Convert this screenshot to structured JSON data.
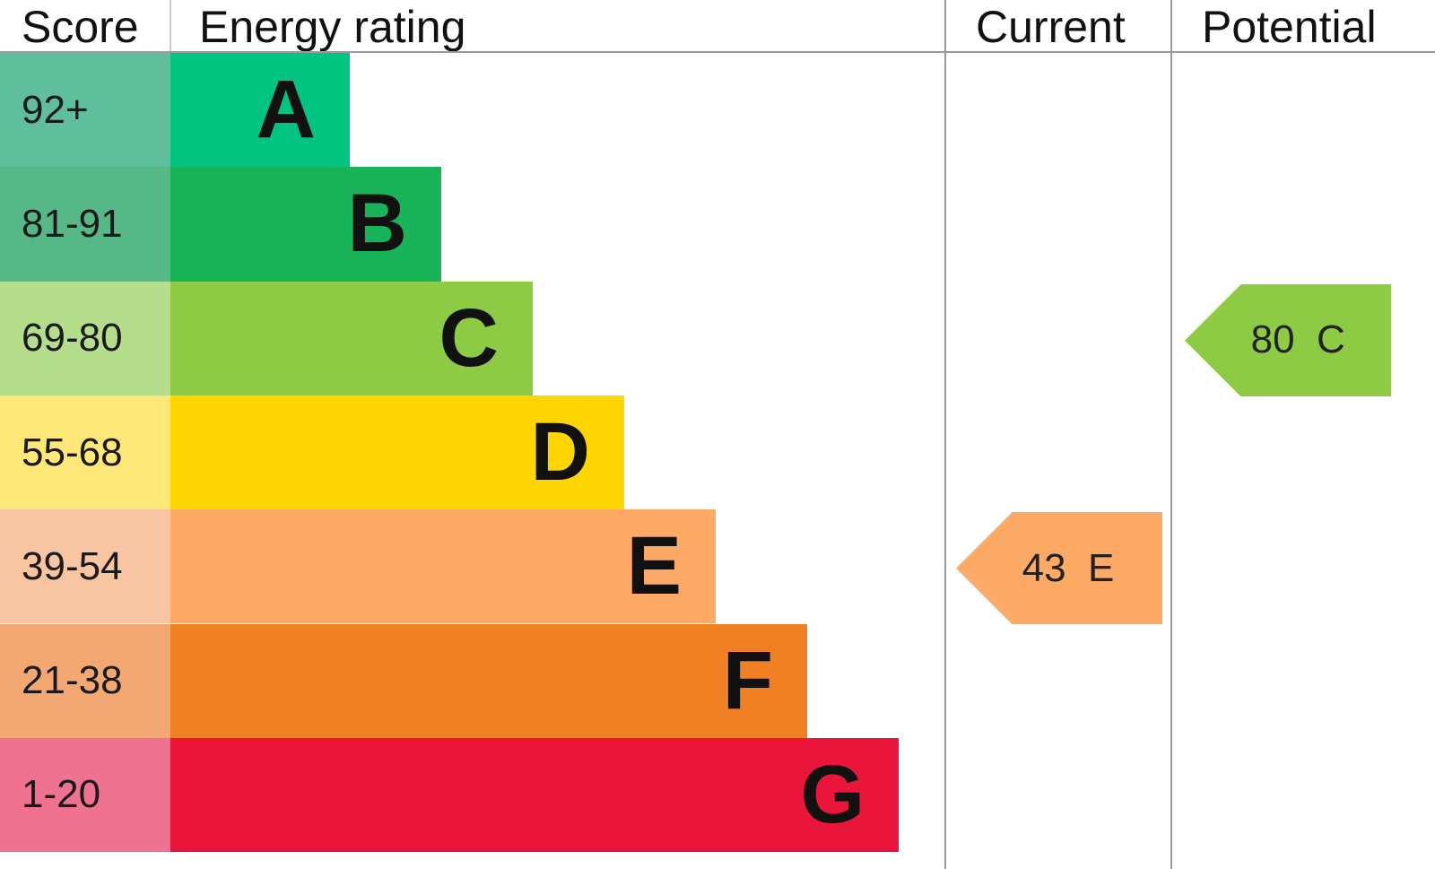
{
  "chart_data": {
    "type": "bar",
    "headers": {
      "score": "Score",
      "rating": "Energy rating",
      "current": "Current",
      "potential": "Potential"
    },
    "bands": [
      {
        "letter": "A",
        "range": "92+",
        "color": "#00c47f",
        "score_color": "#5fbf9c"
      },
      {
        "letter": "B",
        "range": "81-91",
        "color": "#19b35a",
        "score_color": "#56b886"
      },
      {
        "letter": "C",
        "range": "69-80",
        "color": "#8dcb45",
        "score_color": "#b4de8c"
      },
      {
        "letter": "D",
        "range": "55-68",
        "color": "#ffd500",
        "score_color": "#fde779"
      },
      {
        "letter": "E",
        "range": "39-54",
        "color": "#fcaa65",
        "score_color": "#f8c5a3"
      },
      {
        "letter": "F",
        "range": "21-38",
        "color": "#ef8023",
        "score_color": "#f3a873"
      },
      {
        "letter": "G",
        "range": "1-20",
        "color": "#e9153b",
        "score_color": "#ef7390"
      }
    ],
    "current": {
      "value": 43,
      "band": "E",
      "label": "43  E"
    },
    "potential": {
      "value": 80,
      "band": "C",
      "label": "80  C"
    }
  }
}
